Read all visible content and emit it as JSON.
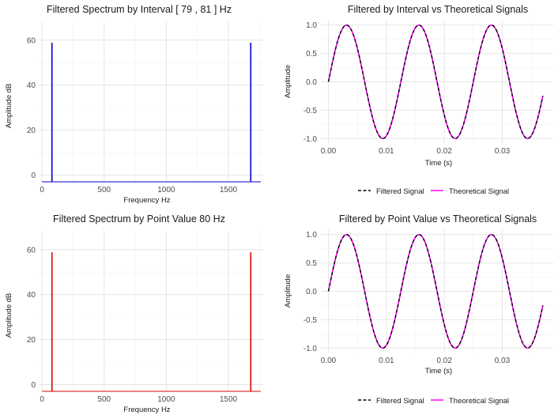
{
  "chart_data": [
    {
      "id": "p1",
      "type": "line",
      "title": "Filtered Spectrum by Interval [ 79 , 81 ] Hz",
      "xlabel": "Frequency Hz",
      "ylabel": "Amplitude dB",
      "xlim": [
        -20,
        1780
      ],
      "ylim": [
        -3,
        68
      ],
      "xticks": [
        0,
        500,
        1000,
        1500
      ],
      "yticks": [
        0,
        20,
        40,
        60
      ],
      "grid": true,
      "color": "#0000cc",
      "baseline": -3,
      "peaks": [
        {
          "x": 80,
          "y": 58.8
        },
        {
          "x": 1680,
          "y": 58.8
        }
      ]
    },
    {
      "id": "p2",
      "type": "line",
      "title": "Filtered by Interval vs Theoretical Signals",
      "xlabel": "Time (s)",
      "ylabel": "Amplitude",
      "xlim": [
        -0.0013,
        0.0388
      ],
      "ylim": [
        -1.08,
        1.08
      ],
      "xticks": [
        0.0,
        0.01,
        0.02,
        0.03
      ],
      "yticks": [
        -1.0,
        -0.5,
        0.0,
        0.5,
        1.0
      ],
      "grid": true,
      "legend": "bottom",
      "frequency_hz": 80,
      "t_range": [
        0,
        0.037
      ],
      "series": [
        {
          "name": "Filtered Signal",
          "color": "#000000",
          "dash": "dashed"
        },
        {
          "name": "Theoretical Signal",
          "color": "#ff00ff",
          "dash": "solid"
        }
      ]
    },
    {
      "id": "p3",
      "type": "line",
      "title": "Filtered Spectrum by Point Value  80 Hz",
      "xlabel": "Frequency Hz",
      "ylabel": "Amplitude dB",
      "xlim": [
        -20,
        1780
      ],
      "ylim": [
        -3,
        68
      ],
      "xticks": [
        0,
        500,
        1000,
        1500
      ],
      "yticks": [
        0,
        20,
        40,
        60
      ],
      "grid": true,
      "color": "#dd0000",
      "baseline": -3,
      "peaks": [
        {
          "x": 80,
          "y": 58.8
        },
        {
          "x": 1680,
          "y": 58.8
        }
      ]
    },
    {
      "id": "p4",
      "type": "line",
      "title": "Filtered by Point Value vs Theoretical Signals",
      "xlabel": "Time (s)",
      "ylabel": "Amplitude",
      "xlim": [
        -0.0013,
        0.0388
      ],
      "ylim": [
        -1.08,
        1.08
      ],
      "xticks": [
        0.0,
        0.01,
        0.02,
        0.03
      ],
      "yticks": [
        -1.0,
        -0.5,
        0.0,
        0.5,
        1.0
      ],
      "grid": true,
      "legend": "bottom",
      "frequency_hz": 80,
      "t_range": [
        0,
        0.037
      ],
      "series": [
        {
          "name": "Filtered Signal",
          "color": "#000000",
          "dash": "dashed"
        },
        {
          "name": "Theoretical Signal",
          "color": "#ff00ff",
          "dash": "solid"
        }
      ]
    }
  ]
}
